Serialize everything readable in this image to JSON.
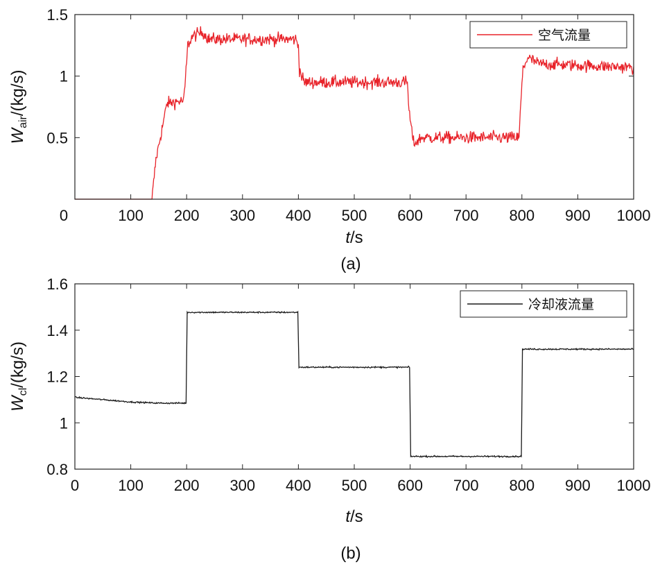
{
  "chart_data": [
    {
      "type": "line",
      "caption": "(a)",
      "xlabel_var": "t",
      "xlabel_unit": "/s",
      "ylabel_var": "W",
      "ylabel_sub": "air",
      "ylabel_unit": "/(kg/s)",
      "xlim": [
        0,
        1000
      ],
      "ylim": [
        0,
        1.5
      ],
      "xticks": [
        0,
        100,
        200,
        300,
        400,
        500,
        600,
        700,
        800,
        900,
        1000
      ],
      "yticks": [
        0.5,
        1,
        1.5
      ],
      "ytick_labels": [
        "0.5",
        "1",
        "1.5"
      ],
      "xtick_labels": [
        "0",
        "100",
        "200",
        "300",
        "400",
        "500",
        "600",
        "700",
        "800",
        "900",
        "1000"
      ],
      "legend_position": "top-right",
      "grid": false,
      "series": [
        {
          "name": "空气流量",
          "color": "#e8232a",
          "noise": 0.05,
          "x": [
            0,
            130,
            138,
            145,
            155,
            165,
            195,
            198,
            202,
            210,
            228,
            240,
            395,
            400,
            402,
            410,
            420,
            595,
            598,
            602,
            606,
            610,
            620,
            795,
            798,
            802,
            810,
            830,
            1000
          ],
          "y": [
            0,
            0,
            0,
            0.32,
            0.55,
            0.78,
            0.8,
            0.98,
            1.25,
            1.32,
            1.36,
            1.3,
            1.3,
            1.25,
            1.05,
            0.95,
            0.95,
            0.95,
            0.72,
            0.58,
            0.46,
            0.46,
            0.5,
            0.5,
            0.78,
            1.06,
            1.15,
            1.1,
            1.07
          ]
        }
      ]
    },
    {
      "type": "line",
      "caption": "(b)",
      "xlabel_var": "t",
      "xlabel_unit": "/s",
      "ylabel_var": "W",
      "ylabel_sub": "cl",
      "ylabel_unit": "/(kg/s)",
      "xlim": [
        0,
        1000
      ],
      "ylim": [
        0.8,
        1.6
      ],
      "xticks": [
        0,
        100,
        200,
        300,
        400,
        500,
        600,
        700,
        800,
        900,
        1000
      ],
      "yticks": [
        0.8,
        1,
        1.2,
        1.4,
        1.6
      ],
      "ytick_labels": [
        "0.8",
        "1",
        "1.2",
        "1.4",
        "1.6"
      ],
      "xtick_labels": [
        "0",
        "100",
        "200",
        "300",
        "400",
        "500",
        "600",
        "700",
        "800",
        "900",
        "1000"
      ],
      "legend_position": "top-right",
      "grid": false,
      "series": [
        {
          "name": "冷却液流量",
          "color": "#1a1a1a",
          "noise": 0.003,
          "x": [
            0,
            50,
            100,
            150,
            199.5,
            200.5,
            300,
            399.5,
            400.5,
            500,
            599.5,
            600.5,
            700,
            799.5,
            800.5,
            900,
            1000
          ],
          "y": [
            1.11,
            1.1,
            1.09,
            1.085,
            1.085,
            1.477,
            1.477,
            1.477,
            1.24,
            1.24,
            1.24,
            0.855,
            0.855,
            0.855,
            1.318,
            1.318,
            1.318
          ]
        }
      ]
    }
  ]
}
